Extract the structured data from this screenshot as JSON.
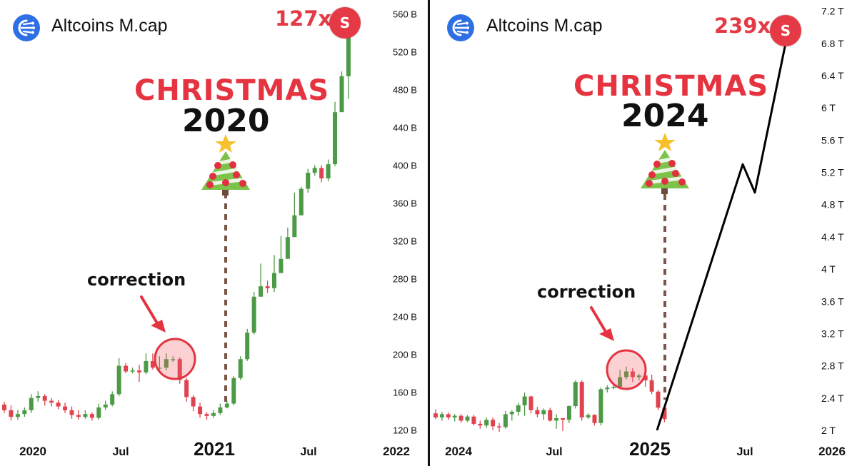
{
  "brand_name": "Altcoins M.cap",
  "colors": {
    "up": "#4d9a46",
    "down": "#e0434f",
    "accent": "#e53a45",
    "badge": "#2f6fe4"
  },
  "icons": {
    "logo": "network-logo-icon",
    "badge": "s-badge-icon",
    "tree": "christmas-tree-icon",
    "arrow": "red-arrow-icon"
  },
  "chart_data": [
    {
      "type": "candlestick",
      "multiplier_label": "127x",
      "badge_letter": "S",
      "annotation_title": "CHRISTMAS",
      "annotation_year": "2020",
      "correction_label": "correction",
      "x_ticks": [
        "2020",
        "Jul",
        "2021",
        "Jul",
        "2022"
      ],
      "y_ticks": [
        "560 B",
        "520 B",
        "480 B",
        "440 B",
        "400 B",
        "360 B",
        "320 B",
        "280 B",
        "240 B",
        "200 B",
        "160 B",
        "120 B"
      ],
      "ylim": [
        113,
        567
      ],
      "candles": [
        [
          147,
          141,
          150,
          138
        ],
        [
          141,
          134,
          146,
          130
        ],
        [
          134,
          137,
          141,
          131
        ],
        [
          137,
          141,
          144,
          134
        ],
        [
          141,
          154,
          158,
          138
        ],
        [
          154,
          156,
          161,
          150
        ],
        [
          156,
          151,
          158,
          146
        ],
        [
          151,
          149,
          154,
          145
        ],
        [
          149,
          145,
          152,
          142
        ],
        [
          145,
          141,
          149,
          138
        ],
        [
          141,
          136,
          145,
          132
        ],
        [
          136,
          134,
          141,
          131
        ],
        [
          134,
          137,
          141,
          132
        ],
        [
          137,
          133,
          139,
          130
        ],
        [
          133,
          144,
          148,
          131
        ],
        [
          144,
          147,
          151,
          141
        ],
        [
          147,
          158,
          161,
          145
        ],
        [
          158,
          188,
          196,
          156
        ],
        [
          188,
          182,
          191,
          180
        ],
        [
          182,
          183,
          186,
          180
        ],
        [
          183,
          181,
          189,
          171
        ],
        [
          181,
          193,
          201,
          179
        ],
        [
          193,
          186,
          201,
          184
        ],
        [
          186,
          186,
          198,
          182
        ],
        [
          186,
          195,
          201,
          183
        ],
        [
          195,
          195,
          198,
          192
        ],
        [
          195,
          173,
          197,
          169
        ],
        [
          173,
          155,
          175,
          150
        ],
        [
          155,
          145,
          157,
          140
        ],
        [
          145,
          137,
          149,
          133
        ],
        [
          137,
          135,
          139,
          131
        ],
        [
          135,
          138,
          141,
          133
        ],
        [
          138,
          144,
          148,
          136
        ],
        [
          144,
          148,
          151,
          143
        ],
        [
          148,
          175,
          177,
          146
        ],
        [
          175,
          195,
          198,
          173
        ],
        [
          195,
          223,
          227,
          193
        ],
        [
          223,
          261,
          266,
          221
        ],
        [
          261,
          272,
          296,
          268
        ],
        [
          272,
          270,
          278,
          265
        ],
        [
          270,
          286,
          305,
          266
        ],
        [
          286,
          301,
          325,
          298
        ],
        [
          301,
          324,
          334,
          320
        ],
        [
          324,
          347,
          371,
          324
        ],
        [
          347,
          375,
          377,
          362
        ],
        [
          375,
          392,
          396,
          371
        ],
        [
          392,
          397,
          400,
          389
        ],
        [
          397,
          386,
          400,
          382
        ],
        [
          386,
          401,
          406,
          383
        ],
        [
          401,
          456,
          467,
          399
        ],
        [
          456,
          494,
          499,
          492
        ],
        [
          494,
          535,
          539,
          470
        ]
      ]
    },
    {
      "type": "candlestick",
      "multiplier_label": "239x",
      "badge_letter": "S",
      "annotation_title": "CHRISTMAS",
      "annotation_year": "2024",
      "correction_label": "correction",
      "x_ticks": [
        "2024",
        "Jul",
        "2025",
        "Jul",
        "2026"
      ],
      "y_ticks": [
        "7.2 T",
        "6.8 T",
        "6.4 T",
        "6 T",
        "5.6 T",
        "5.2 T",
        "4.8 T",
        "4.4 T",
        "4 T",
        "3.6 T",
        "3.2 T",
        "2.8 T",
        "2.4 T",
        "2 T"
      ],
      "ylim": [
        1.92,
        7.25
      ],
      "projection": {
        "x": [
          "Jan 2025",
          "May 2025",
          "Jun 2025",
          "Jul 2025"
        ],
        "y": [
          2.0,
          5.3,
          4.95,
          6.8
        ],
        "projected": true
      },
      "candles": [
        [
          2.21,
          2.16,
          2.26,
          2.14
        ],
        [
          2.16,
          2.2,
          2.23,
          2.12
        ],
        [
          2.2,
          2.16,
          2.22,
          2.13
        ],
        [
          2.16,
          2.18,
          2.2,
          2.11
        ],
        [
          2.18,
          2.12,
          2.2,
          2.09
        ],
        [
          2.12,
          2.17,
          2.19,
          2.1
        ],
        [
          2.17,
          2.08,
          2.19,
          2.06
        ],
        [
          2.08,
          2.06,
          2.12,
          2.02
        ],
        [
          2.06,
          2.13,
          2.16,
          2.03
        ],
        [
          2.13,
          2.05,
          2.16,
          2.0
        ],
        [
          2.05,
          2.04,
          2.09,
          1.98
        ],
        [
          2.04,
          2.2,
          2.24,
          2.02
        ],
        [
          2.2,
          2.23,
          2.25,
          2.12
        ],
        [
          2.23,
          2.31,
          2.34,
          2.18
        ],
        [
          2.31,
          2.42,
          2.47,
          2.18
        ],
        [
          2.42,
          2.25,
          2.43,
          2.21
        ],
        [
          2.25,
          2.2,
          2.29,
          2.16
        ],
        [
          2.2,
          2.25,
          2.27,
          2.13
        ],
        [
          2.25,
          2.12,
          2.28,
          2.11
        ],
        [
          2.12,
          2.15,
          2.2,
          2.02
        ],
        [
          2.15,
          2.13,
          2.15,
          1.99
        ],
        [
          2.13,
          2.3,
          2.31,
          2.09
        ],
        [
          2.3,
          2.6,
          2.62,
          2.27
        ],
        [
          2.6,
          2.16,
          2.62,
          2.12
        ],
        [
          2.16,
          2.19,
          2.21,
          2.14
        ],
        [
          2.19,
          2.09,
          2.2,
          2.06
        ],
        [
          2.09,
          2.51,
          2.53,
          2.06
        ],
        [
          2.51,
          2.53,
          2.56,
          2.47
        ],
        [
          2.53,
          2.54,
          2.58,
          2.51
        ],
        [
          2.54,
          2.66,
          2.75,
          2.51
        ],
        [
          2.66,
          2.73,
          2.79,
          2.63
        ],
        [
          2.73,
          2.66,
          2.77,
          2.6
        ],
        [
          2.66,
          2.68,
          2.7,
          2.62
        ],
        [
          2.68,
          2.62,
          2.71,
          2.54
        ],
        [
          2.62,
          2.48,
          2.69,
          2.45
        ],
        [
          2.48,
          2.28,
          2.5,
          2.25
        ],
        [
          2.28,
          2.14,
          2.32,
          2.1
        ]
      ]
    }
  ]
}
